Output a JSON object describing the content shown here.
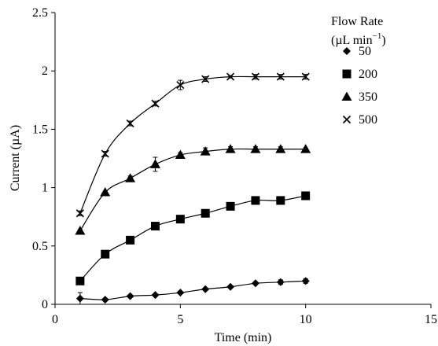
{
  "chart_data": {
    "type": "line",
    "xlabel": "Time (min)",
    "ylabel": "Current (µA)",
    "xlim": [
      0,
      15
    ],
    "ylim": [
      0,
      2.5
    ],
    "xticks": [
      "0",
      "5",
      "10",
      "15"
    ],
    "yticks": [
      "0",
      "0.5",
      "1",
      "1.5",
      "2",
      "2.5"
    ],
    "grid": false,
    "legend": {
      "title_line1": "Flow Rate",
      "title_line2": "(µL min",
      "title_sup": "−1",
      "title_close": ")",
      "placement": "top-right"
    },
    "series": [
      {
        "name": "50",
        "marker": "diamond",
        "x": [
          1,
          2,
          3,
          4,
          5,
          6,
          7,
          8,
          9,
          10
        ],
        "y": [
          0.05,
          0.04,
          0.07,
          0.08,
          0.1,
          0.13,
          0.15,
          0.18,
          0.19,
          0.2
        ],
        "err": [
          0.05,
          0.01,
          0.01,
          0.01,
          0.01,
          0.01,
          0.01,
          0.01,
          0.02,
          0.02
        ]
      },
      {
        "name": "200",
        "marker": "square",
        "x": [
          1,
          2,
          3,
          4,
          5,
          6,
          7,
          8,
          9,
          10
        ],
        "y": [
          0.2,
          0.43,
          0.55,
          0.67,
          0.73,
          0.78,
          0.84,
          0.89,
          0.89,
          0.93
        ],
        "err": [
          0.01,
          0.01,
          0.01,
          0.01,
          0.01,
          0.01,
          0.01,
          0.01,
          0.01,
          0.01
        ]
      },
      {
        "name": "350",
        "marker": "triangle",
        "x": [
          1,
          2,
          3,
          4,
          5,
          6,
          7,
          8,
          9,
          10
        ],
        "y": [
          0.63,
          0.96,
          1.08,
          1.2,
          1.28,
          1.31,
          1.33,
          1.33,
          1.33,
          1.33
        ],
        "err": [
          0.01,
          0.01,
          0.02,
          0.06,
          0.02,
          0.03,
          0.02,
          0.02,
          0.02,
          0.01
        ]
      },
      {
        "name": "500",
        "marker": "x",
        "x": [
          1,
          2,
          3,
          4,
          5,
          6,
          7,
          8,
          9,
          10
        ],
        "y": [
          0.78,
          1.29,
          1.55,
          1.72,
          1.88,
          1.93,
          1.95,
          1.95,
          1.95,
          1.95
        ],
        "err": [
          0.02,
          0.02,
          0.02,
          0.02,
          0.04,
          0.02,
          0.01,
          0.02,
          0.02,
          0.02
        ]
      }
    ]
  }
}
